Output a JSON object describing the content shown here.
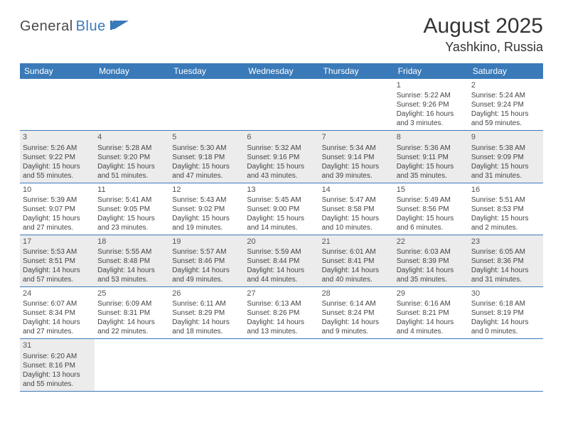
{
  "logo": {
    "part1": "General",
    "part2": "Blue"
  },
  "title": "August 2025",
  "location": "Yashkino, Russia",
  "colors": {
    "header_bg": "#3a7ab8",
    "header_text": "#ffffff",
    "border": "#3a7ab8",
    "shaded_bg": "#ececec",
    "text": "#444444",
    "logo_gray": "#4a4a4a",
    "logo_blue": "#3a7ab8"
  },
  "weekdays": [
    "Sunday",
    "Monday",
    "Tuesday",
    "Wednesday",
    "Thursday",
    "Friday",
    "Saturday"
  ],
  "weeks": [
    [
      {
        "empty": true
      },
      {
        "empty": true
      },
      {
        "empty": true
      },
      {
        "empty": true
      },
      {
        "empty": true
      },
      {
        "day": "1",
        "sunrise": "Sunrise: 5:22 AM",
        "sunset": "Sunset: 9:26 PM",
        "daylight": "Daylight: 16 hours and 3 minutes.",
        "shaded": false
      },
      {
        "day": "2",
        "sunrise": "Sunrise: 5:24 AM",
        "sunset": "Sunset: 9:24 PM",
        "daylight": "Daylight: 15 hours and 59 minutes.",
        "shaded": false
      }
    ],
    [
      {
        "day": "3",
        "sunrise": "Sunrise: 5:26 AM",
        "sunset": "Sunset: 9:22 PM",
        "daylight": "Daylight: 15 hours and 55 minutes.",
        "shaded": true
      },
      {
        "day": "4",
        "sunrise": "Sunrise: 5:28 AM",
        "sunset": "Sunset: 9:20 PM",
        "daylight": "Daylight: 15 hours and 51 minutes.",
        "shaded": true
      },
      {
        "day": "5",
        "sunrise": "Sunrise: 5:30 AM",
        "sunset": "Sunset: 9:18 PM",
        "daylight": "Daylight: 15 hours and 47 minutes.",
        "shaded": true
      },
      {
        "day": "6",
        "sunrise": "Sunrise: 5:32 AM",
        "sunset": "Sunset: 9:16 PM",
        "daylight": "Daylight: 15 hours and 43 minutes.",
        "shaded": true
      },
      {
        "day": "7",
        "sunrise": "Sunrise: 5:34 AM",
        "sunset": "Sunset: 9:14 PM",
        "daylight": "Daylight: 15 hours and 39 minutes.",
        "shaded": true
      },
      {
        "day": "8",
        "sunrise": "Sunrise: 5:36 AM",
        "sunset": "Sunset: 9:11 PM",
        "daylight": "Daylight: 15 hours and 35 minutes.",
        "shaded": true
      },
      {
        "day": "9",
        "sunrise": "Sunrise: 5:38 AM",
        "sunset": "Sunset: 9:09 PM",
        "daylight": "Daylight: 15 hours and 31 minutes.",
        "shaded": true
      }
    ],
    [
      {
        "day": "10",
        "sunrise": "Sunrise: 5:39 AM",
        "sunset": "Sunset: 9:07 PM",
        "daylight": "Daylight: 15 hours and 27 minutes.",
        "shaded": false
      },
      {
        "day": "11",
        "sunrise": "Sunrise: 5:41 AM",
        "sunset": "Sunset: 9:05 PM",
        "daylight": "Daylight: 15 hours and 23 minutes.",
        "shaded": false
      },
      {
        "day": "12",
        "sunrise": "Sunrise: 5:43 AM",
        "sunset": "Sunset: 9:02 PM",
        "daylight": "Daylight: 15 hours and 19 minutes.",
        "shaded": false
      },
      {
        "day": "13",
        "sunrise": "Sunrise: 5:45 AM",
        "sunset": "Sunset: 9:00 PM",
        "daylight": "Daylight: 15 hours and 14 minutes.",
        "shaded": false
      },
      {
        "day": "14",
        "sunrise": "Sunrise: 5:47 AM",
        "sunset": "Sunset: 8:58 PM",
        "daylight": "Daylight: 15 hours and 10 minutes.",
        "shaded": false
      },
      {
        "day": "15",
        "sunrise": "Sunrise: 5:49 AM",
        "sunset": "Sunset: 8:56 PM",
        "daylight": "Daylight: 15 hours and 6 minutes.",
        "shaded": false
      },
      {
        "day": "16",
        "sunrise": "Sunrise: 5:51 AM",
        "sunset": "Sunset: 8:53 PM",
        "daylight": "Daylight: 15 hours and 2 minutes.",
        "shaded": false
      }
    ],
    [
      {
        "day": "17",
        "sunrise": "Sunrise: 5:53 AM",
        "sunset": "Sunset: 8:51 PM",
        "daylight": "Daylight: 14 hours and 57 minutes.",
        "shaded": true
      },
      {
        "day": "18",
        "sunrise": "Sunrise: 5:55 AM",
        "sunset": "Sunset: 8:48 PM",
        "daylight": "Daylight: 14 hours and 53 minutes.",
        "shaded": true
      },
      {
        "day": "19",
        "sunrise": "Sunrise: 5:57 AM",
        "sunset": "Sunset: 8:46 PM",
        "daylight": "Daylight: 14 hours and 49 minutes.",
        "shaded": true
      },
      {
        "day": "20",
        "sunrise": "Sunrise: 5:59 AM",
        "sunset": "Sunset: 8:44 PM",
        "daylight": "Daylight: 14 hours and 44 minutes.",
        "shaded": true
      },
      {
        "day": "21",
        "sunrise": "Sunrise: 6:01 AM",
        "sunset": "Sunset: 8:41 PM",
        "daylight": "Daylight: 14 hours and 40 minutes.",
        "shaded": true
      },
      {
        "day": "22",
        "sunrise": "Sunrise: 6:03 AM",
        "sunset": "Sunset: 8:39 PM",
        "daylight": "Daylight: 14 hours and 35 minutes.",
        "shaded": true
      },
      {
        "day": "23",
        "sunrise": "Sunrise: 6:05 AM",
        "sunset": "Sunset: 8:36 PM",
        "daylight": "Daylight: 14 hours and 31 minutes.",
        "shaded": true
      }
    ],
    [
      {
        "day": "24",
        "sunrise": "Sunrise: 6:07 AM",
        "sunset": "Sunset: 8:34 PM",
        "daylight": "Daylight: 14 hours and 27 minutes.",
        "shaded": false
      },
      {
        "day": "25",
        "sunrise": "Sunrise: 6:09 AM",
        "sunset": "Sunset: 8:31 PM",
        "daylight": "Daylight: 14 hours and 22 minutes.",
        "shaded": false
      },
      {
        "day": "26",
        "sunrise": "Sunrise: 6:11 AM",
        "sunset": "Sunset: 8:29 PM",
        "daylight": "Daylight: 14 hours and 18 minutes.",
        "shaded": false
      },
      {
        "day": "27",
        "sunrise": "Sunrise: 6:13 AM",
        "sunset": "Sunset: 8:26 PM",
        "daylight": "Daylight: 14 hours and 13 minutes.",
        "shaded": false
      },
      {
        "day": "28",
        "sunrise": "Sunrise: 6:14 AM",
        "sunset": "Sunset: 8:24 PM",
        "daylight": "Daylight: 14 hours and 9 minutes.",
        "shaded": false
      },
      {
        "day": "29",
        "sunrise": "Sunrise: 6:16 AM",
        "sunset": "Sunset: 8:21 PM",
        "daylight": "Daylight: 14 hours and 4 minutes.",
        "shaded": false
      },
      {
        "day": "30",
        "sunrise": "Sunrise: 6:18 AM",
        "sunset": "Sunset: 8:19 PM",
        "daylight": "Daylight: 14 hours and 0 minutes.",
        "shaded": false
      }
    ],
    [
      {
        "day": "31",
        "sunrise": "Sunrise: 6:20 AM",
        "sunset": "Sunset: 8:16 PM",
        "daylight": "Daylight: 13 hours and 55 minutes.",
        "shaded": true
      },
      {
        "empty": true
      },
      {
        "empty": true
      },
      {
        "empty": true
      },
      {
        "empty": true
      },
      {
        "empty": true
      },
      {
        "empty": true
      }
    ]
  ]
}
